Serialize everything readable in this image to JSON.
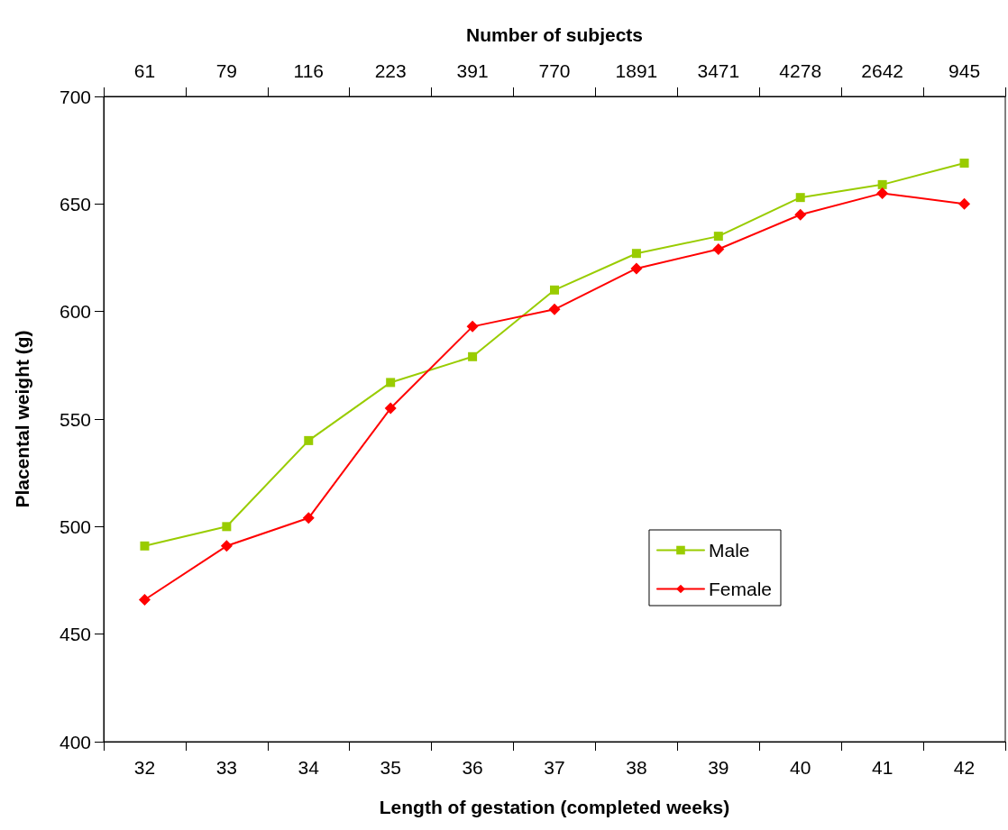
{
  "chart_data": {
    "type": "line",
    "xlabel": "Length of gestation (completed weeks)",
    "ylabel": "Placental weight (g)",
    "x2label": "Number of subjects",
    "categories": [
      "32",
      "33",
      "34",
      "35",
      "36",
      "37",
      "38",
      "39",
      "40",
      "41",
      "42"
    ],
    "annotations": [
      "61",
      "79",
      "116",
      "223",
      "391",
      "770",
      "1891",
      "3471",
      "4278",
      "2642",
      "945"
    ],
    "series": [
      {
        "name": "Male",
        "color": "#99cc00",
        "marker": "square",
        "values": [
          491,
          500,
          540,
          567,
          579,
          610,
          627,
          635,
          653,
          659,
          669
        ]
      },
      {
        "name": "Female",
        "color": "#ff0000",
        "marker": "diamond",
        "values": [
          466,
          491,
          504,
          555,
          593,
          601,
          620,
          629,
          645,
          655,
          650
        ]
      }
    ],
    "ylim": [
      400,
      700
    ],
    "yticks": [
      400,
      450,
      500,
      550,
      600,
      650,
      700
    ],
    "grid": false,
    "legend": "right",
    "line_style": "solid"
  }
}
